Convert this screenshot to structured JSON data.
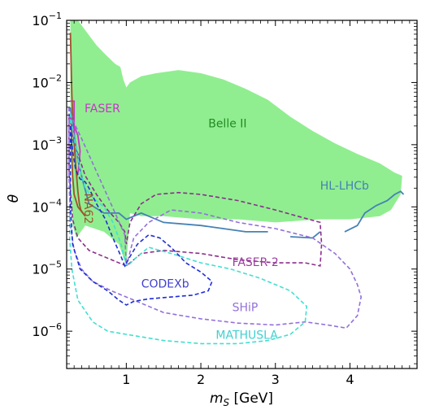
{
  "chart_data": {
    "type": "line",
    "xlabel_main": "m",
    "xlabel_sub": "S",
    "xlabel_unit": " [GeV]",
    "ylabel": "θ",
    "xlim": [
      0.2,
      4.9
    ],
    "ylog": true,
    "ylim_exp": [
      -6.6,
      -1
    ],
    "x_ticks": [
      {
        "v": 1,
        "label": "1"
      },
      {
        "v": 2,
        "label": "2"
      },
      {
        "v": 3,
        "label": "3"
      },
      {
        "v": 4,
        "label": "4"
      }
    ],
    "y_ticks": [
      {
        "e": -6,
        "label": "10",
        "sup": "−6"
      },
      {
        "e": -5,
        "label": "10",
        "sup": "−5"
      },
      {
        "e": -4,
        "label": "10",
        "sup": "−4"
      },
      {
        "e": -3,
        "label": "10",
        "sup": "−3"
      },
      {
        "e": -2,
        "label": "10",
        "sup": "−2"
      },
      {
        "e": -1,
        "label": "10",
        "sup": "−1"
      }
    ],
    "series": [
      {
        "name": "Belle II",
        "kind": "fill",
        "color": "#90ee90",
        "points": [
          [
            0.25,
            -1
          ],
          [
            0.35,
            -1
          ],
          [
            0.6,
            -1.4
          ],
          [
            0.72,
            -1.55
          ],
          [
            0.85,
            -1.7
          ],
          [
            0.92,
            -1.75
          ],
          [
            0.96,
            -1.95
          ],
          [
            1.0,
            -2.08
          ],
          [
            1.05,
            -2.0
          ],
          [
            1.2,
            -1.9
          ],
          [
            1.4,
            -1.85
          ],
          [
            1.7,
            -1.8
          ],
          [
            2.0,
            -1.85
          ],
          [
            2.3,
            -1.95
          ],
          [
            2.6,
            -2.1
          ],
          [
            2.9,
            -2.28
          ],
          [
            3.2,
            -2.55
          ],
          [
            3.5,
            -2.78
          ],
          [
            3.8,
            -2.98
          ],
          [
            4.1,
            -3.15
          ],
          [
            4.4,
            -3.3
          ],
          [
            4.6,
            -3.45
          ],
          [
            4.7,
            -3.5
          ],
          [
            4.68,
            -3.8
          ],
          [
            4.55,
            -4.05
          ],
          [
            4.4,
            -4.15
          ],
          [
            4.0,
            -4.2
          ],
          [
            3.6,
            -4.2
          ],
          [
            3.0,
            -4.25
          ],
          [
            2.5,
            -4.2
          ],
          [
            2.0,
            -4.2
          ],
          [
            1.5,
            -4.15
          ],
          [
            1.2,
            -4.15
          ],
          [
            1.05,
            -4.1
          ],
          [
            1.0,
            -4.95
          ],
          [
            0.9,
            -4.6
          ],
          [
            0.7,
            -4.4
          ],
          [
            0.45,
            -4.3
          ],
          [
            0.33,
            -4.5
          ],
          [
            0.28,
            -4.3
          ],
          [
            0.25,
            -2.5
          ]
        ]
      },
      {
        "name": "FASER",
        "kind": "solid",
        "color": "#cc33cc",
        "points": [
          [
            0.24,
            -2.3
          ],
          [
            0.3,
            -2.3
          ],
          [
            0.3,
            -2.7
          ],
          [
            0.31,
            -3.1
          ],
          [
            0.32,
            -3.35
          ],
          [
            0.34,
            -3.5
          ],
          [
            0.36,
            -3.4
          ],
          [
            0.38,
            -3.1
          ],
          [
            0.35,
            -2.85
          ],
          [
            0.3,
            -2.7
          ],
          [
            0.26,
            -2.6
          ],
          [
            0.24,
            -2.55
          ]
        ]
      },
      {
        "name": "NA62",
        "kind": "solid",
        "color": "#a0522d",
        "points": [
          [
            0.25,
            -1.2
          ],
          [
            0.27,
            -2.2
          ],
          [
            0.29,
            -2.8
          ],
          [
            0.32,
            -3.3
          ],
          [
            0.35,
            -3.75
          ],
          [
            0.37,
            -3.95
          ],
          [
            0.39,
            -4.05
          ],
          [
            0.45,
            -4.15
          ],
          [
            0.35,
            -4.0
          ],
          [
            0.3,
            -3.8
          ],
          [
            0.28,
            -3.5
          ],
          [
            0.27,
            -3.2
          ],
          [
            0.26,
            -2.6
          ]
        ]
      },
      {
        "name": "HL-LHCb",
        "kind": "solid",
        "color": "#4682b4",
        "points_list": [
          [
            [
              0.25,
              -2.4
            ],
            [
              0.28,
              -2.7
            ],
            [
              0.32,
              -3.0
            ],
            [
              0.36,
              -3.3
            ],
            [
              0.42,
              -3.6
            ],
            [
              0.5,
              -3.95
            ],
            [
              0.7,
              -4.1
            ],
            [
              0.9,
              -4.1
            ],
            [
              1.0,
              -4.2
            ],
            [
              1.2,
              -4.1
            ],
            [
              1.5,
              -4.25
            ],
            [
              2.0,
              -4.3
            ],
            [
              2.3,
              -4.35
            ],
            [
              2.6,
              -4.4
            ],
            [
              2.9,
              -4.4
            ]
          ],
          [
            [
              3.2,
              -4.48
            ],
            [
              3.5,
              -4.5
            ],
            [
              3.6,
              -4.4
            ]
          ],
          [
            [
              3.93,
              -4.4
            ],
            [
              4.1,
              -4.3
            ],
            [
              4.2,
              -4.1
            ],
            [
              4.35,
              -3.98
            ],
            [
              4.5,
              -3.9
            ],
            [
              4.6,
              -3.8
            ],
            [
              4.68,
              -3.75
            ],
            [
              4.72,
              -3.8
            ]
          ]
        ]
      },
      {
        "name": "FASER 2",
        "kind": "dashed",
        "color": "#8b2f8b",
        "points": [
          [
            0.23,
            -2.5
          ],
          [
            0.28,
            -2.9
          ],
          [
            0.35,
            -3.15
          ],
          [
            0.45,
            -3.5
          ],
          [
            0.6,
            -3.8
          ],
          [
            0.75,
            -4.05
          ],
          [
            0.9,
            -4.25
          ],
          [
            0.98,
            -4.4
          ],
          [
            1.0,
            -4.6
          ],
          [
            1.05,
            -4.25
          ],
          [
            1.2,
            -3.95
          ],
          [
            1.4,
            -3.8
          ],
          [
            1.7,
            -3.77
          ],
          [
            2.0,
            -3.8
          ],
          [
            2.5,
            -3.9
          ],
          [
            3.0,
            -4.05
          ],
          [
            3.3,
            -4.15
          ],
          [
            3.6,
            -4.25
          ],
          [
            3.62,
            -4.6
          ],
          [
            3.6,
            -4.95
          ],
          [
            3.4,
            -4.9
          ],
          [
            3.0,
            -4.9
          ],
          [
            2.5,
            -4.85
          ],
          [
            2.0,
            -4.75
          ],
          [
            1.5,
            -4.7
          ],
          [
            1.2,
            -4.75
          ],
          [
            1.0,
            -4.95
          ],
          [
            0.8,
            -4.85
          ],
          [
            0.5,
            -4.7
          ],
          [
            0.35,
            -4.5
          ],
          [
            0.28,
            -4.2
          ],
          [
            0.23,
            -3.4
          ]
        ]
      },
      {
        "name": "SHiP",
        "kind": "dashed",
        "color": "#9370db",
        "points": [
          [
            0.23,
            -2.4
          ],
          [
            0.3,
            -2.65
          ],
          [
            0.4,
            -2.9
          ],
          [
            0.55,
            -3.3
          ],
          [
            0.7,
            -3.7
          ],
          [
            0.85,
            -4.1
          ],
          [
            0.98,
            -4.45
          ],
          [
            1.0,
            -4.95
          ],
          [
            1.1,
            -4.5
          ],
          [
            1.3,
            -4.25
          ],
          [
            1.6,
            -4.05
          ],
          [
            2.0,
            -4.1
          ],
          [
            2.5,
            -4.25
          ],
          [
            3.0,
            -4.35
          ],
          [
            3.5,
            -4.5
          ],
          [
            3.8,
            -4.75
          ],
          [
            4.0,
            -5.0
          ],
          [
            4.1,
            -5.25
          ],
          [
            4.15,
            -5.45
          ],
          [
            4.1,
            -5.75
          ],
          [
            3.95,
            -5.95
          ],
          [
            3.7,
            -5.9
          ],
          [
            3.4,
            -5.85
          ],
          [
            3.0,
            -5.9
          ],
          [
            2.5,
            -5.87
          ],
          [
            2.0,
            -5.8
          ],
          [
            1.5,
            -5.7
          ],
          [
            1.1,
            -5.5
          ],
          [
            0.8,
            -5.35
          ],
          [
            0.55,
            -5.2
          ],
          [
            0.4,
            -5.0
          ],
          [
            0.3,
            -4.7
          ],
          [
            0.25,
            -4.3
          ],
          [
            0.23,
            -3.5
          ]
        ]
      },
      {
        "name": "MATHUSLA",
        "kind": "dashed",
        "color": "#40e0d0",
        "points": [
          [
            0.25,
            -2.5
          ],
          [
            0.3,
            -2.9
          ],
          [
            0.38,
            -3.4
          ],
          [
            0.45,
            -3.7
          ],
          [
            0.55,
            -3.85
          ],
          [
            0.7,
            -4.0
          ],
          [
            0.82,
            -4.25
          ],
          [
            0.93,
            -4.6
          ],
          [
            0.98,
            -4.85
          ],
          [
            1.02,
            -4.95
          ],
          [
            1.1,
            -4.85
          ],
          [
            1.3,
            -4.65
          ],
          [
            1.6,
            -4.75
          ],
          [
            2.0,
            -4.9
          ],
          [
            2.4,
            -5.0
          ],
          [
            2.8,
            -5.15
          ],
          [
            3.2,
            -5.35
          ],
          [
            3.42,
            -5.6
          ],
          [
            3.4,
            -5.85
          ],
          [
            3.2,
            -6.05
          ],
          [
            2.9,
            -6.15
          ],
          [
            2.5,
            -6.2
          ],
          [
            2.0,
            -6.2
          ],
          [
            1.5,
            -6.15
          ],
          [
            1.0,
            -6.05
          ],
          [
            0.75,
            -6.0
          ],
          [
            0.55,
            -5.85
          ],
          [
            0.35,
            -5.5
          ],
          [
            0.27,
            -5.0
          ],
          [
            0.24,
            -4.5
          ]
        ]
      },
      {
        "name": "CODEXb",
        "kind": "dashed",
        "color": "#1f2ed6",
        "points": [
          [
            0.25,
            -2.7
          ],
          [
            0.28,
            -3.1
          ],
          [
            0.32,
            -3.4
          ],
          [
            0.38,
            -3.55
          ],
          [
            0.45,
            -3.6
          ],
          [
            0.5,
            -3.7
          ],
          [
            0.6,
            -3.95
          ],
          [
            0.72,
            -4.2
          ],
          [
            0.82,
            -4.5
          ],
          [
            0.93,
            -4.8
          ],
          [
            0.98,
            -4.95
          ],
          [
            1.05,
            -4.8
          ],
          [
            1.15,
            -4.6
          ],
          [
            1.3,
            -4.45
          ],
          [
            1.45,
            -4.5
          ],
          [
            1.6,
            -4.65
          ],
          [
            1.8,
            -4.9
          ],
          [
            2.0,
            -5.05
          ],
          [
            2.15,
            -5.2
          ],
          [
            2.1,
            -5.35
          ],
          [
            1.9,
            -5.42
          ],
          [
            1.6,
            -5.45
          ],
          [
            1.3,
            -5.48
          ],
          [
            1.1,
            -5.52
          ],
          [
            1.0,
            -5.58
          ],
          [
            0.9,
            -5.5
          ],
          [
            0.75,
            -5.35
          ],
          [
            0.55,
            -5.2
          ],
          [
            0.38,
            -5.0
          ],
          [
            0.28,
            -4.6
          ],
          [
            0.25,
            -4.0
          ]
        ]
      }
    ],
    "labels": [
      {
        "key": "belle",
        "text": "Belle II",
        "color": "#228b22",
        "x": 2.1,
        "e": -2.72,
        "rotate": 0
      },
      {
        "key": "faser",
        "text": "FASER",
        "color": "#cc33cc",
        "x": 0.44,
        "e": -2.48,
        "rotate": 0
      },
      {
        "key": "na62",
        "text": "NA62",
        "color": "#a0522d",
        "x": 0.44,
        "e": -3.78,
        "rotate": 90
      },
      {
        "key": "lhcb",
        "text": "HL-LHCb",
        "color": "#4682b4",
        "x": 3.6,
        "e": -3.72,
        "rotate": 0
      },
      {
        "key": "faser2",
        "text": "FASER 2",
        "color": "#9b3fa0",
        "x": 2.42,
        "e": -4.95,
        "rotate": 0
      },
      {
        "key": "codexb",
        "text": "CODEXb",
        "color": "#4040d0",
        "x": 1.2,
        "e": -5.3,
        "rotate": 0
      },
      {
        "key": "ship",
        "text": "SHiP",
        "color": "#9370db",
        "x": 2.42,
        "e": -5.68,
        "rotate": 0
      },
      {
        "key": "mathusla",
        "text": "MATHUSLA",
        "color": "#40d0d0",
        "x": 2.2,
        "e": -6.12,
        "rotate": 0
      }
    ]
  }
}
